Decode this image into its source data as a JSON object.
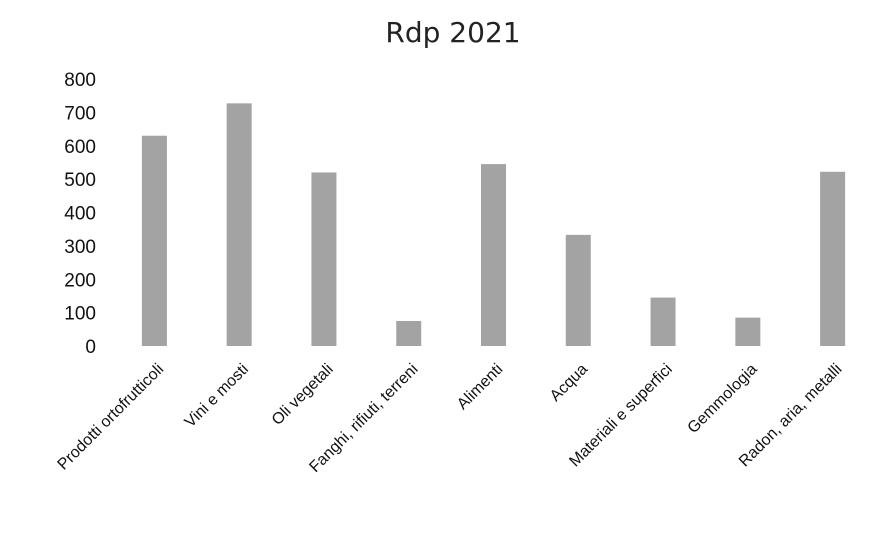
{
  "chart_data": {
    "type": "bar",
    "title": "Rdp 2021",
    "xlabel": "",
    "ylabel": "",
    "categories": [
      "Prodotti ortofrutticoli",
      "Vini e mosti",
      "Oli vegetali",
      "Fanghi, rifiuti, terreni",
      "Alimenti",
      "Acqua",
      "Materiali e superfici",
      "Gemmologia",
      "Radon, aria, metalli"
    ],
    "values": [
      630,
      727,
      520,
      75,
      545,
      333,
      145,
      85,
      522
    ],
    "ylim": [
      0,
      800
    ],
    "yticks": [
      "0",
      "100",
      "200",
      "300",
      "400",
      "500",
      "600",
      "700",
      "800"
    ],
    "grid": false,
    "legend": "none",
    "bar_color": "#a3a3a3"
  }
}
